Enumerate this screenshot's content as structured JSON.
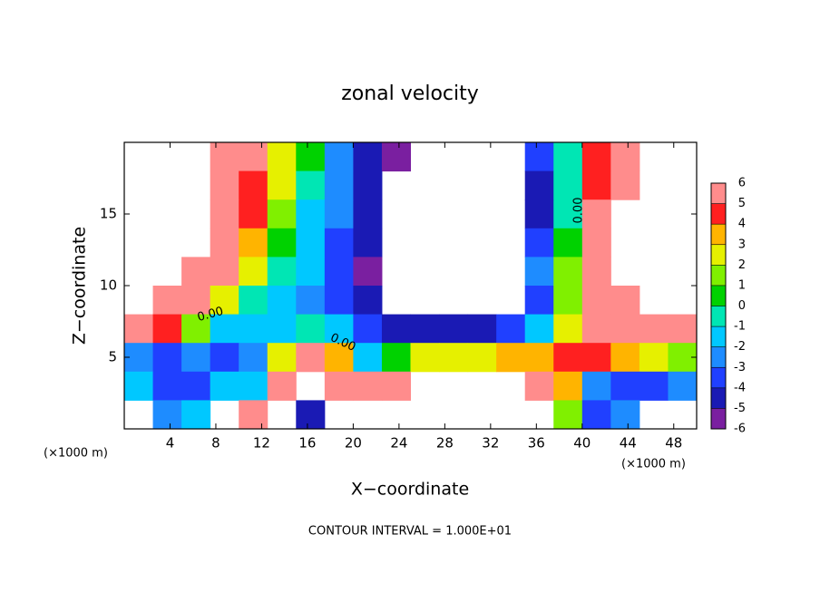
{
  "chart_data": {
    "type": "contour",
    "title": "zonal velocity",
    "x_label": "X−coordinate",
    "y_label": "Z−coordinate",
    "x_unit": "(×1000 m)",
    "y_unit": "(×1000 m)",
    "footer": "CONTOUR INTERVAL = 1.000E+01",
    "contour_labels": [
      "0.00",
      "0.00",
      "0.00"
    ],
    "xlim": [
      0,
      50
    ],
    "ylim": [
      0,
      20
    ],
    "xticks": [
      4,
      8,
      12,
      16,
      20,
      24,
      28,
      32,
      36,
      40,
      44,
      48
    ],
    "yticks": [
      5,
      10,
      15
    ],
    "x": [
      1.25,
      3.75,
      6.25,
      8.75,
      11.25,
      13.75,
      16.25,
      18.75,
      21.25,
      23.75,
      26.25,
      28.75,
      31.25,
      33.75,
      36.25,
      38.75,
      41.25,
      43.75,
      46.25,
      48.75
    ],
    "y": [
      19,
      17,
      15,
      13,
      11,
      9,
      7,
      5,
      3,
      1
    ],
    "values": [
      [
        null,
        null,
        null,
        6,
        5,
        2,
        0,
        -3,
        -5,
        -6,
        null,
        null,
        null,
        null,
        -4,
        -1,
        4,
        6,
        null,
        null
      ],
      [
        null,
        null,
        null,
        6,
        4,
        2,
        -1,
        -3,
        -5,
        null,
        null,
        null,
        null,
        null,
        -5,
        -1,
        4,
        6,
        null,
        null
      ],
      [
        null,
        null,
        null,
        6,
        4,
        1,
        -2,
        -3,
        -5,
        null,
        null,
        null,
        null,
        null,
        -5,
        -1,
        5,
        null,
        null,
        null
      ],
      [
        null,
        null,
        null,
        6,
        3,
        0,
        -2,
        -4,
        -5,
        null,
        null,
        null,
        null,
        null,
        -4,
        0,
        5,
        null,
        null,
        null
      ],
      [
        null,
        null,
        6,
        5,
        2,
        -1,
        -2,
        -4,
        -6,
        null,
        null,
        null,
        null,
        null,
        -3,
        1,
        5,
        null,
        null,
        null
      ],
      [
        null,
        6,
        5,
        2,
        -1,
        -2,
        -3,
        -4,
        -5,
        null,
        null,
        null,
        null,
        null,
        -4,
        1,
        5,
        6,
        null,
        null
      ],
      [
        6,
        4,
        1,
        -2,
        -2,
        -2,
        -1,
        -2,
        -4,
        -5,
        -5,
        -5,
        -5,
        -4,
        -2,
        2,
        6,
        6,
        6,
        5
      ],
      [
        -3,
        -4,
        -3,
        -4,
        -3,
        2,
        6,
        3,
        -2,
        0,
        2,
        2,
        2,
        3,
        3,
        4,
        4,
        3,
        2,
        1
      ],
      [
        -2,
        -4,
        -4,
        -2,
        -2,
        6,
        null,
        6,
        5,
        6,
        null,
        null,
        null,
        null,
        5,
        3,
        -3,
        -4,
        -4,
        -3
      ],
      [
        null,
        -3,
        -2,
        null,
        5,
        null,
        -5,
        null,
        null,
        null,
        null,
        null,
        null,
        null,
        null,
        1,
        -4,
        -3,
        null,
        null
      ]
    ],
    "colorbar": {
      "lim": [
        -6,
        6
      ],
      "ticks": [
        -6,
        -5,
        -4,
        -3,
        -2,
        -1,
        0,
        1,
        2,
        3,
        4,
        5,
        6
      ],
      "colors": [
        "#7a1fa0",
        "#1a1ab4",
        "#2040ff",
        "#1e8cff",
        "#00c8ff",
        "#00e6b4",
        "#00d200",
        "#80f000",
        "#e6f000",
        "#ffb400",
        "#ff2020",
        "#ff8c8c"
      ]
    }
  }
}
